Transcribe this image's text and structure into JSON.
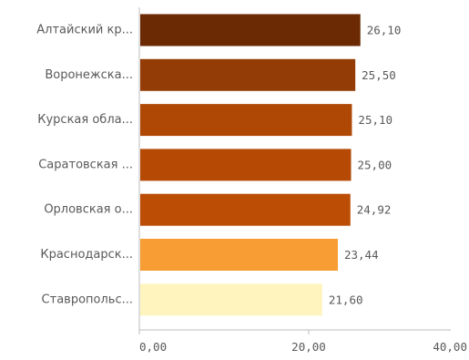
{
  "chart_data": {
    "type": "bar",
    "orientation": "horizontal",
    "categories": [
      "Алтайский кр...",
      "Воронежска...",
      "Курская обла...",
      "Саратовская ...",
      "Орловская о...",
      "Краснодарск...",
      "Ставропольс..."
    ],
    "values": [
      26.1,
      25.5,
      25.1,
      25.0,
      24.92,
      23.44,
      21.6
    ],
    "value_labels": [
      "26,10",
      "25,50",
      "25,10",
      "25,00",
      "24,92",
      "23,44",
      "21,60"
    ],
    "bar_colors": [
      "#6b2a04",
      "#943c06",
      "#b04805",
      "#b64a05",
      "#bc4d05",
      "#f89d34",
      "#fff4be"
    ],
    "title": "",
    "xlabel": "",
    "ylabel": "",
    "xlim": [
      0,
      40
    ],
    "x_ticks": [
      0,
      20,
      40
    ],
    "x_tick_labels": [
      "0,00",
      "20,00",
      "40,00"
    ],
    "grid": false,
    "legend": "none"
  }
}
